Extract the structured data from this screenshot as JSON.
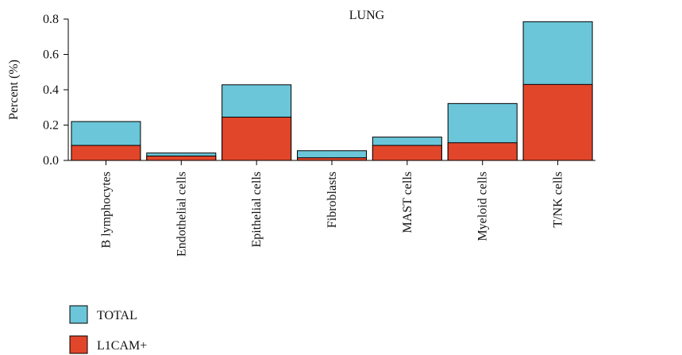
{
  "chart_data": {
    "type": "bar",
    "stacked": true,
    "title": "LUNG",
    "ylabel": "Percent (%)",
    "xlabel": "",
    "ylim": [
      0,
      0.8
    ],
    "yticks": [
      "0.0",
      "0.2",
      "0.4",
      "0.6",
      "0.8"
    ],
    "categories": [
      "B lymphocytes",
      "Endothelial cells",
      "Epithelial cells",
      "Fibroblasts",
      "MAST cells",
      "Myeloid cells",
      "T/NK cells"
    ],
    "series": [
      {
        "name": "L1CAM+",
        "color": "#e2462a",
        "values": [
          0.085,
          0.025,
          0.245,
          0.015,
          0.085,
          0.1,
          0.43
        ]
      },
      {
        "name": "TOTAL",
        "color": "#6ac6d8",
        "values": [
          0.22,
          0.042,
          0.428,
          0.055,
          0.132,
          0.322,
          0.785
        ]
      }
    ],
    "legend": {
      "position": "bottom-left",
      "items": [
        {
          "label": "TOTAL",
          "color": "#6ac6d8"
        },
        {
          "label": "L1CAM+",
          "color": "#e2462a"
        }
      ]
    },
    "grid": false
  }
}
